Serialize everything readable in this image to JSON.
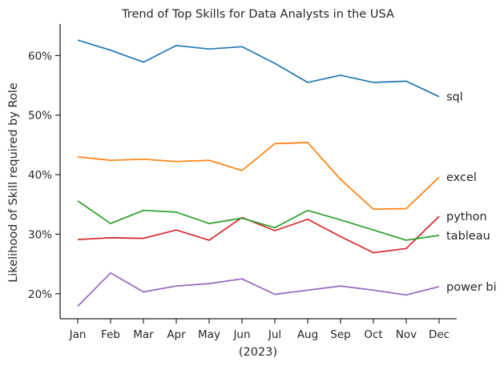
{
  "chart_data": {
    "type": "line",
    "title": "Trend of Top Skills for Data Analysts in the USA",
    "xlabel": "(2023)",
    "ylabel": "Likelihood of Skill required by Role",
    "categories": [
      "Jan",
      "Feb",
      "Mar",
      "Apr",
      "May",
      "Jun",
      "Jul",
      "Aug",
      "Sep",
      "Oct",
      "Nov",
      "Dec"
    ],
    "ylim": [
      15.8,
      65.3
    ],
    "yticks": [
      20,
      30,
      40,
      50,
      60
    ],
    "ytick_labels": [
      "20%",
      "30%",
      "40%",
      "50%",
      "60%"
    ],
    "grid": false,
    "legend": "none",
    "series": [
      {
        "name": "sql",
        "color": "#1f77b4",
        "values": [
          62.6,
          60.9,
          58.9,
          61.7,
          61.1,
          61.5,
          58.7,
          55.5,
          56.7,
          55.5,
          55.7,
          53.1
        ]
      },
      {
        "name": "excel",
        "color": "#ff7f0e",
        "values": [
          43.0,
          42.4,
          42.6,
          42.2,
          42.4,
          40.7,
          45.2,
          45.4,
          39.2,
          34.2,
          34.3,
          39.6
        ]
      },
      {
        "name": "python",
        "color": "#d62728",
        "values": [
          29.1,
          29.4,
          29.3,
          30.7,
          29.0,
          32.8,
          30.6,
          32.5,
          29.6,
          26.9,
          27.6,
          33.0
        ]
      },
      {
        "name": "tableau",
        "color": "#2ca02c",
        "values": [
          35.6,
          31.8,
          34.0,
          33.7,
          31.8,
          32.7,
          31.1,
          34.0,
          32.4,
          30.7,
          29.0,
          29.8
        ]
      },
      {
        "name": "power bi",
        "color": "#9467bd",
        "values": [
          17.9,
          23.5,
          20.3,
          21.3,
          21.7,
          22.5,
          19.9,
          20.6,
          21.3,
          20.6,
          19.8,
          21.2
        ]
      }
    ]
  }
}
